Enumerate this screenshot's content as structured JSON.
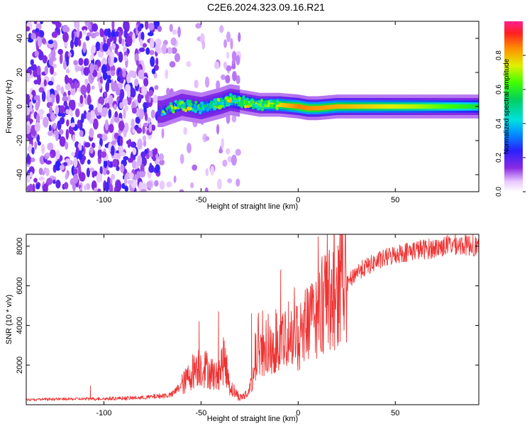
{
  "title": "C2E6.2024.323.09.16.R21",
  "colors": {
    "snr_line": "#ee3333",
    "axis": "#000000"
  },
  "chart_data": [
    {
      "type": "heatmap",
      "xlabel": "Height of straight line (km)",
      "ylabel": "Frequency (Hz)",
      "xlim": [
        -140,
        93
      ],
      "ylim": [
        -50,
        50
      ],
      "xticks": [
        -100,
        -50,
        0,
        50
      ],
      "yticks": [
        -40,
        -20,
        0,
        20,
        40
      ],
      "colorbar": {
        "label": "Normalized spectral amplitude",
        "range": [
          0.0,
          1.0
        ],
        "ticks": [
          "0.0",
          "0.2",
          "0.4",
          "0.6",
          "0.8"
        ],
        "tick_values": [
          0.0,
          0.2,
          0.4,
          0.6,
          0.8
        ]
      },
      "ridge_center_hz": [
        {
          "h": -70,
          "f": -3
        },
        {
          "h": -60,
          "f": 1
        },
        {
          "h": -50,
          "f": -1
        },
        {
          "h": -40,
          "f": 2
        },
        {
          "h": -35,
          "f": 4
        },
        {
          "h": -30,
          "f": 3
        },
        {
          "h": -20,
          "f": 1
        },
        {
          "h": -10,
          "f": 1
        },
        {
          "h": 0,
          "f": 0
        },
        {
          "h": 5,
          "f": -1
        },
        {
          "h": 10,
          "f": -1
        },
        {
          "h": 20,
          "f": 0
        },
        {
          "h": 93,
          "f": 0
        }
      ],
      "peak_amplitude": [
        {
          "h": -70,
          "a": 0.25
        },
        {
          "h": -60,
          "a": 0.4
        },
        {
          "h": -40,
          "a": 0.45
        },
        {
          "h": -20,
          "a": 0.7
        },
        {
          "h": 0,
          "a": 0.9
        },
        {
          "h": 20,
          "a": 0.85
        },
        {
          "h": 60,
          "a": 0.75
        },
        {
          "h": 93,
          "a": 0.6
        }
      ]
    },
    {
      "type": "line",
      "xlabel": "Height of straight line (km)",
      "ylabel": "SNR (10 * v/v)",
      "xlim": [
        -140,
        93
      ],
      "ylim": [
        0,
        8600
      ],
      "xticks": [
        -100,
        -50,
        0,
        50
      ],
      "yticks": [
        2000,
        4000,
        6000,
        8000
      ],
      "series": [
        {
          "envelope": [
            {
              "x": -140,
              "y": 250
            },
            {
              "x": -100,
              "y": 300
            },
            {
              "x": -80,
              "y": 350
            },
            {
              "x": -65,
              "y": 500
            },
            {
              "x": -58,
              "y": 1200
            },
            {
              "x": -52,
              "y": 2000
            },
            {
              "x": -47,
              "y": 1800
            },
            {
              "x": -42,
              "y": 1400
            },
            {
              "x": -38,
              "y": 2300
            },
            {
              "x": -35,
              "y": 900
            },
            {
              "x": -30,
              "y": 350
            },
            {
              "x": -25,
              "y": 600
            },
            {
              "x": -22,
              "y": 2200
            },
            {
              "x": -15,
              "y": 2800
            },
            {
              "x": -10,
              "y": 3100
            },
            {
              "x": 0,
              "y": 3400
            },
            {
              "x": 10,
              "y": 4600
            },
            {
              "x": 20,
              "y": 5400
            },
            {
              "x": 30,
              "y": 6700
            },
            {
              "x": 40,
              "y": 7200
            },
            {
              "x": 50,
              "y": 7600
            },
            {
              "x": 60,
              "y": 7800
            },
            {
              "x": 70,
              "y": 7900
            },
            {
              "x": 80,
              "y": 8100
            },
            {
              "x": 93,
              "y": 8000
            }
          ],
          "spikes": [
            {
              "x": -107,
              "y": 950
            },
            {
              "x": -51,
              "y": 4200
            },
            {
              "x": -41,
              "y": 4700
            },
            {
              "x": -24,
              "y": 4600
            },
            {
              "x": -9,
              "y": 6800
            },
            {
              "x": -5,
              "y": 5200
            },
            {
              "x": 8,
              "y": 5800
            },
            {
              "x": 13,
              "y": 6200
            },
            {
              "x": 22,
              "y": 6700
            },
            {
              "x": 78,
              "y": 8400
            },
            {
              "x": 90,
              "y": 8600
            }
          ]
        }
      ]
    }
  ]
}
